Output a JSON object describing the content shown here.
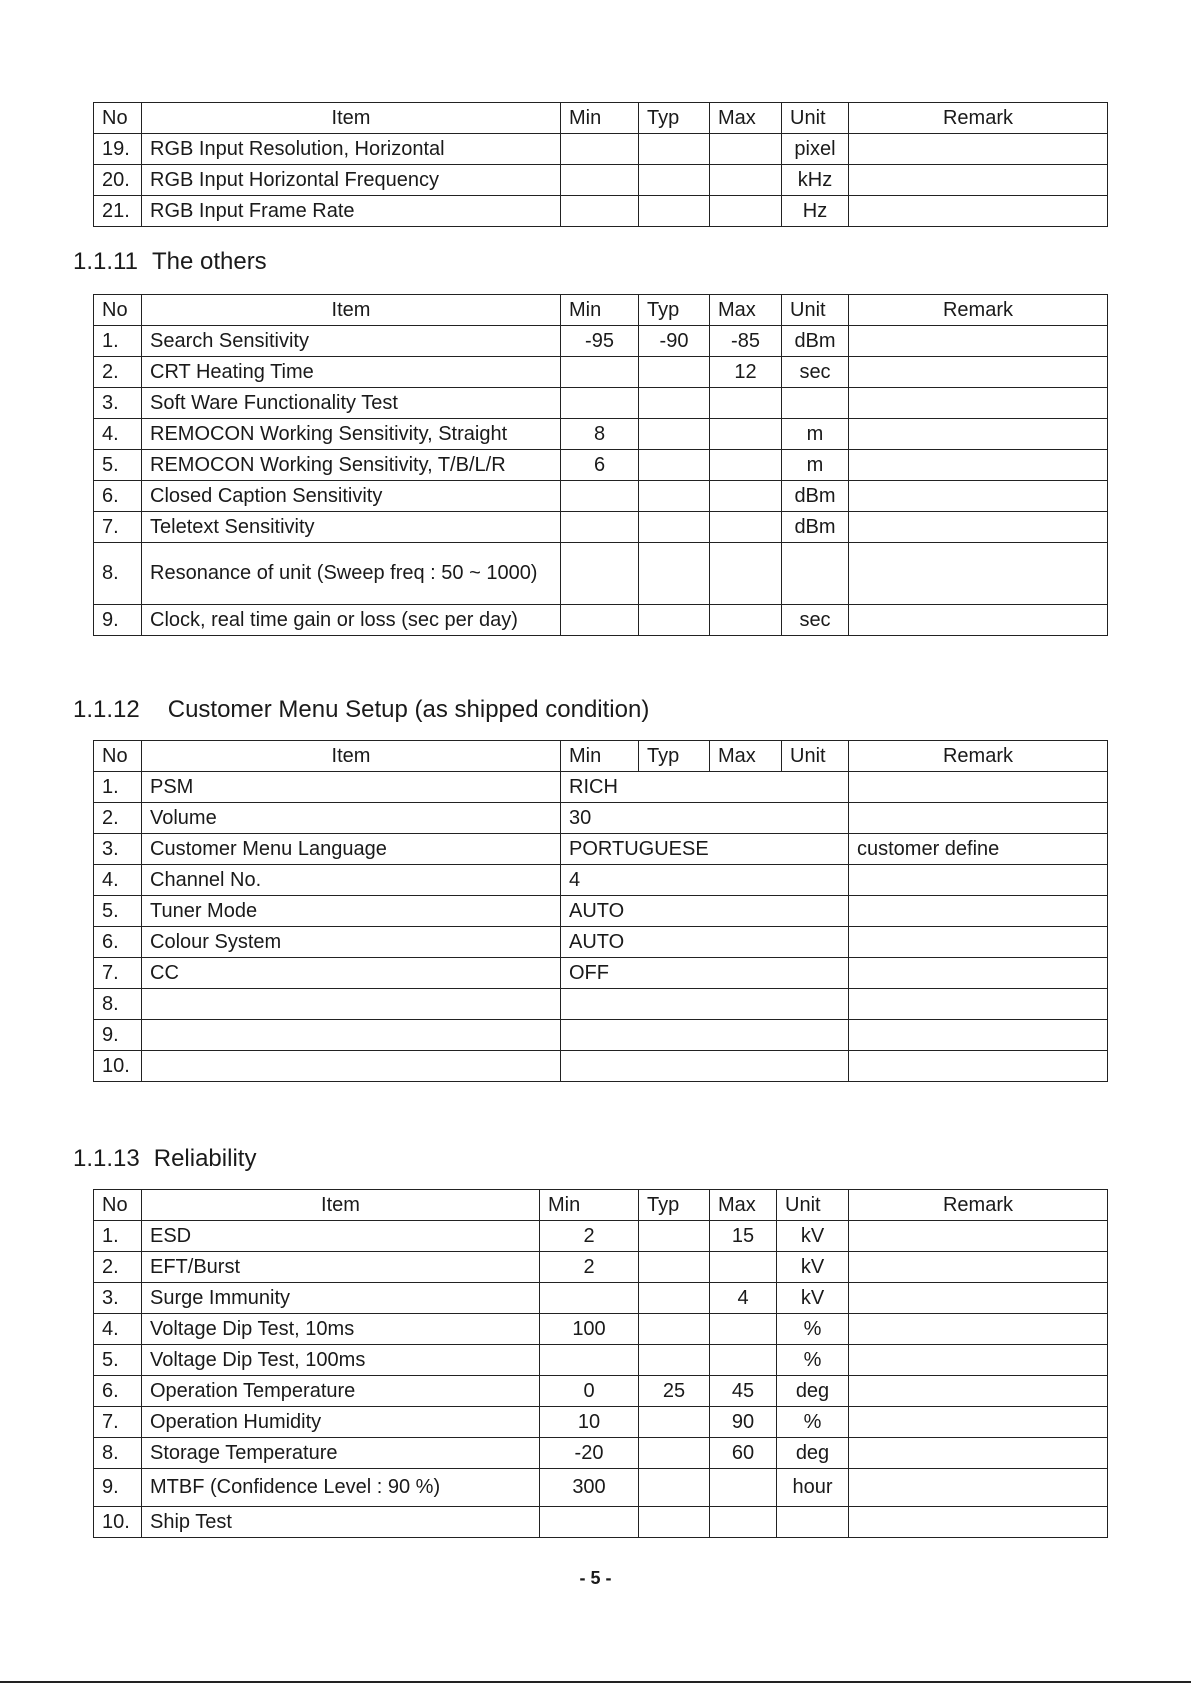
{
  "headers": [
    "No",
    "Item",
    "Min",
    "Typ",
    "Max",
    "Unit",
    "Remark"
  ],
  "table_input": {
    "rows": [
      [
        "19.",
        "RGB Input Resolution, Horizontal",
        "",
        "",
        "",
        "pixel",
        ""
      ],
      [
        "20.",
        "RGB Input Horizontal Frequency",
        "",
        "",
        "",
        "kHz",
        ""
      ],
      [
        "21.",
        "RGB Input Frame Rate",
        "",
        "",
        "",
        "Hz",
        ""
      ]
    ]
  },
  "section_others": {
    "number": "1.1.11",
    "title": "The others"
  },
  "table_others": {
    "rows": [
      [
        "1.",
        "Search Sensitivity",
        "-95",
        "-90",
        "-85",
        "dBm",
        ""
      ],
      [
        "2.",
        "CRT Heating Time",
        "",
        "",
        "12",
        "sec",
        ""
      ],
      [
        "3.",
        "Soft Ware Functionality Test",
        "",
        "",
        "",
        "",
        ""
      ],
      [
        "4.",
        "REMOCON Working Sensitivity, Straight",
        "8",
        "",
        "",
        "m",
        ""
      ],
      [
        "5.",
        "REMOCON Working Sensitivity, T/B/L/R",
        "6",
        "",
        "",
        "m",
        ""
      ],
      [
        "6.",
        "Closed Caption Sensitivity",
        "",
        "",
        "",
        "dBm",
        ""
      ],
      [
        "7.",
        "Teletext Sensitivity",
        "",
        "",
        "",
        "dBm",
        ""
      ],
      [
        "8.",
        "Resonance of unit (Sweep freq : 50 ~ 1000)",
        "",
        "",
        "",
        "",
        ""
      ],
      [
        "9.",
        "Clock, real time gain or loss (sec per day)",
        "",
        "",
        "",
        "sec",
        ""
      ]
    ]
  },
  "section_menu": {
    "number": "1.1.12",
    "title": "Customer Menu Setup (as shipped condition)"
  },
  "table_menu": {
    "rows": [
      [
        "1.",
        "PSM",
        "RICH",
        ""
      ],
      [
        "2.",
        "Volume",
        "30",
        ""
      ],
      [
        "3.",
        "Customer Menu Language",
        "PORTUGUESE",
        "customer define"
      ],
      [
        "4.",
        "Channel No.",
        "4",
        ""
      ],
      [
        "5.",
        "Tuner Mode",
        "AUTO",
        ""
      ],
      [
        "6.",
        "Colour System",
        "AUTO",
        ""
      ],
      [
        "7.",
        "CC",
        "OFF",
        ""
      ],
      [
        "8.",
        "",
        "",
        ""
      ],
      [
        "9.",
        "",
        "",
        ""
      ],
      [
        "10.",
        "",
        "",
        ""
      ]
    ]
  },
  "section_reliability": {
    "number": "1.1.13",
    "title": "Reliability"
  },
  "table_reliability": {
    "rows": [
      [
        "1.",
        "ESD",
        "2",
        "",
        "15",
        "kV",
        ""
      ],
      [
        "2.",
        "EFT/Burst",
        "2",
        "",
        "",
        "kV",
        ""
      ],
      [
        "3.",
        "Surge Immunity",
        "",
        "",
        "4",
        "kV",
        ""
      ],
      [
        "4.",
        "Voltage Dip Test, 10ms",
        "100",
        "",
        "",
        "%",
        ""
      ],
      [
        "5.",
        "Voltage Dip Test, 100ms",
        "",
        "",
        "",
        "%",
        ""
      ],
      [
        "6.",
        "Operation Temperature",
        "0",
        "25",
        "45",
        "deg",
        ""
      ],
      [
        "7.",
        "Operation Humidity",
        "10",
        "",
        "90",
        "%",
        ""
      ],
      [
        "8.",
        "Storage Temperature",
        "-20",
        "",
        "60",
        "deg",
        ""
      ],
      [
        "9.",
        "MTBF (Confidence Level : 90 %)",
        "300",
        "",
        "",
        "hour",
        ""
      ],
      [
        "10.",
        "Ship Test",
        "",
        "",
        "",
        "",
        ""
      ]
    ]
  },
  "page_number": "- 5 -"
}
